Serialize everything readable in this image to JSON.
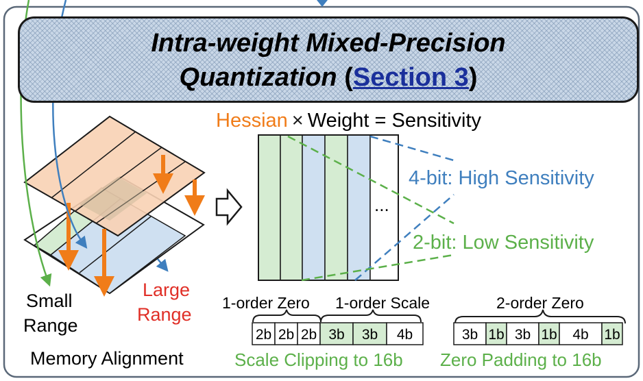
{
  "banner": {
    "title_line1": "Intra-weight Mixed-Precision",
    "title_line2_prefix": "Quantization",
    "paren_open": "(",
    "section_link": "Section 3",
    "paren_close": ")"
  },
  "equation": {
    "hessian": "Hessian",
    "times": "×",
    "rest": "Weight = Sensitivity"
  },
  "matrix": {
    "ellipsis": "..."
  },
  "sensitivity": {
    "high": "4-bit: High Sensitivity",
    "low": "2-bit: Low Sensitivity"
  },
  "left_panel": {
    "small_range_line1": "Small",
    "small_range_line2": "Range",
    "large_range_line1": "Large",
    "large_range_line2": "Range",
    "memory_alignment": "Memory Alignment"
  },
  "scale_clipping": {
    "label_zero": "1-order Zero",
    "label_scale": "1-order Scale",
    "cells": [
      "2b",
      "2b",
      "2b",
      "3b",
      "3b",
      "4b"
    ],
    "caption": "Scale Clipping to 16b"
  },
  "zero_padding": {
    "label": "2-order Zero",
    "cells": [
      "3b",
      "1b",
      "3b",
      "1b",
      "4b",
      "1b"
    ],
    "caption": "Zero Padding to 16b"
  },
  "colors": {
    "orange": "#f07c19",
    "green": "#5cb04a",
    "blue": "#3f7fbe",
    "red": "#e02f27",
    "link": "#1a2f9b",
    "green_fill": "#d5ecd2",
    "blue_fill": "#cfe0f1",
    "orange_fill": "#f8d1b4"
  }
}
